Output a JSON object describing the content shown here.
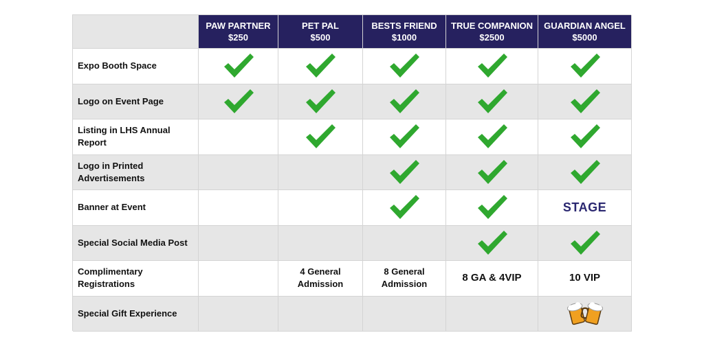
{
  "colors": {
    "header_bg": "#26215f",
    "header_text": "#ffffff",
    "check_green": "#2fa82f",
    "stage_text": "#2a2770",
    "row_shade": "#e6e6e6"
  },
  "tiers": [
    {
      "name": "PAW PARTNER",
      "price": "$250"
    },
    {
      "name": "PET PAL",
      "price": "$500"
    },
    {
      "name": "BESTS FRIEND",
      "price": "$1000"
    },
    {
      "name": "TRUE COMPANION",
      "price": "$2500"
    },
    {
      "name": "GUARDIAN ANGEL",
      "price": "$5000"
    }
  ],
  "benefits": [
    {
      "label": "Expo Booth Space",
      "cells": [
        {
          "kind": "check"
        },
        {
          "kind": "check"
        },
        {
          "kind": "check"
        },
        {
          "kind": "check"
        },
        {
          "kind": "check"
        }
      ]
    },
    {
      "label": "Logo on Event Page",
      "cells": [
        {
          "kind": "check"
        },
        {
          "kind": "check"
        },
        {
          "kind": "check"
        },
        {
          "kind": "check"
        },
        {
          "kind": "check"
        }
      ]
    },
    {
      "label": "Listing in LHS Annual Report",
      "cells": [
        {
          "kind": "empty"
        },
        {
          "kind": "check"
        },
        {
          "kind": "check"
        },
        {
          "kind": "check"
        },
        {
          "kind": "check"
        }
      ]
    },
    {
      "label": "Logo in Printed Advertisements",
      "cells": [
        {
          "kind": "empty"
        },
        {
          "kind": "empty"
        },
        {
          "kind": "check"
        },
        {
          "kind": "check"
        },
        {
          "kind": "check"
        }
      ]
    },
    {
      "label": "Banner at Event",
      "cells": [
        {
          "kind": "empty"
        },
        {
          "kind": "empty"
        },
        {
          "kind": "check"
        },
        {
          "kind": "check"
        },
        {
          "kind": "text",
          "text": "STAGE",
          "style": "stage"
        }
      ]
    },
    {
      "label": "Special Social Media Post",
      "cells": [
        {
          "kind": "empty"
        },
        {
          "kind": "empty"
        },
        {
          "kind": "empty"
        },
        {
          "kind": "check"
        },
        {
          "kind": "check"
        }
      ]
    },
    {
      "label": "Complimentary Registrations",
      "cells": [
        {
          "kind": "empty"
        },
        {
          "kind": "text",
          "text": "4 General Admission"
        },
        {
          "kind": "text",
          "text": "8 General Admission"
        },
        {
          "kind": "text",
          "text": "8 GA & 4VIP",
          "style": "big"
        },
        {
          "kind": "text",
          "text": "10 VIP",
          "style": "big"
        }
      ]
    },
    {
      "label": "Special Gift Experience",
      "cells": [
        {
          "kind": "empty"
        },
        {
          "kind": "empty"
        },
        {
          "kind": "empty"
        },
        {
          "kind": "empty"
        },
        {
          "kind": "icon",
          "icon": "beer-mugs-icon"
        }
      ]
    }
  ]
}
